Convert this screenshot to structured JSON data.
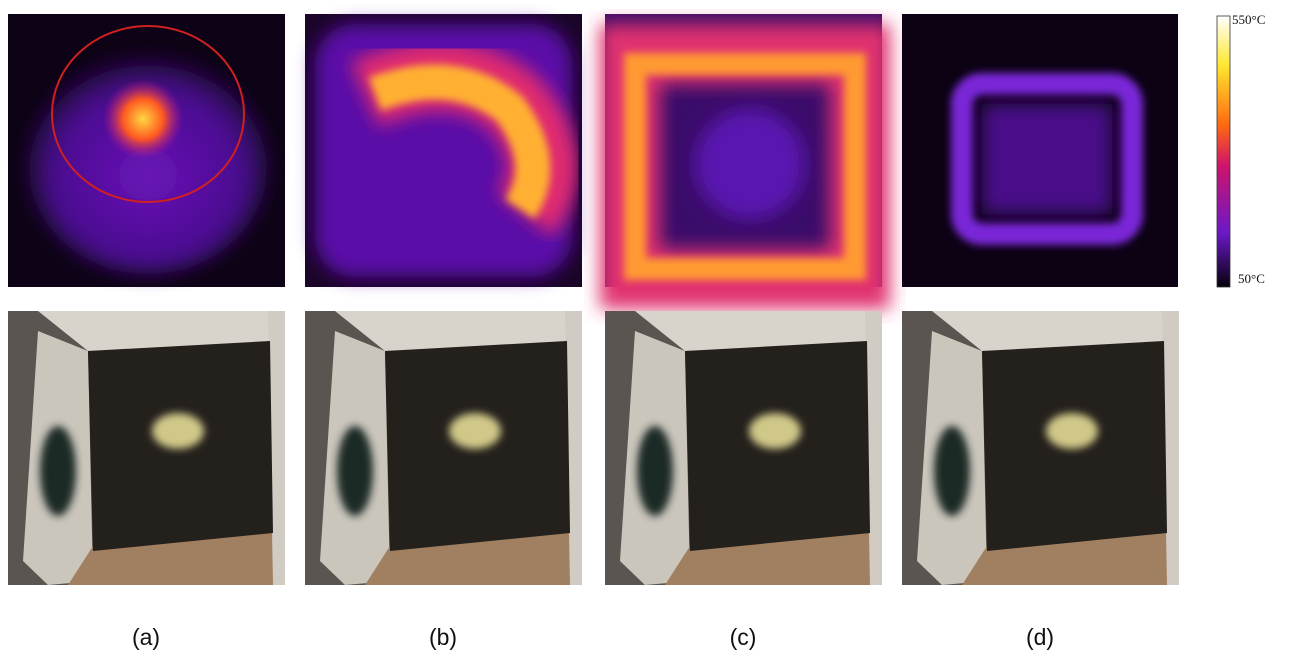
{
  "panels": [
    {
      "label": "(a)"
    },
    {
      "label": "(b)"
    },
    {
      "label": "(c)"
    },
    {
      "label": "(d)"
    }
  ],
  "colorbar": {
    "max_label": "550°C",
    "min_label": "50°C"
  }
}
